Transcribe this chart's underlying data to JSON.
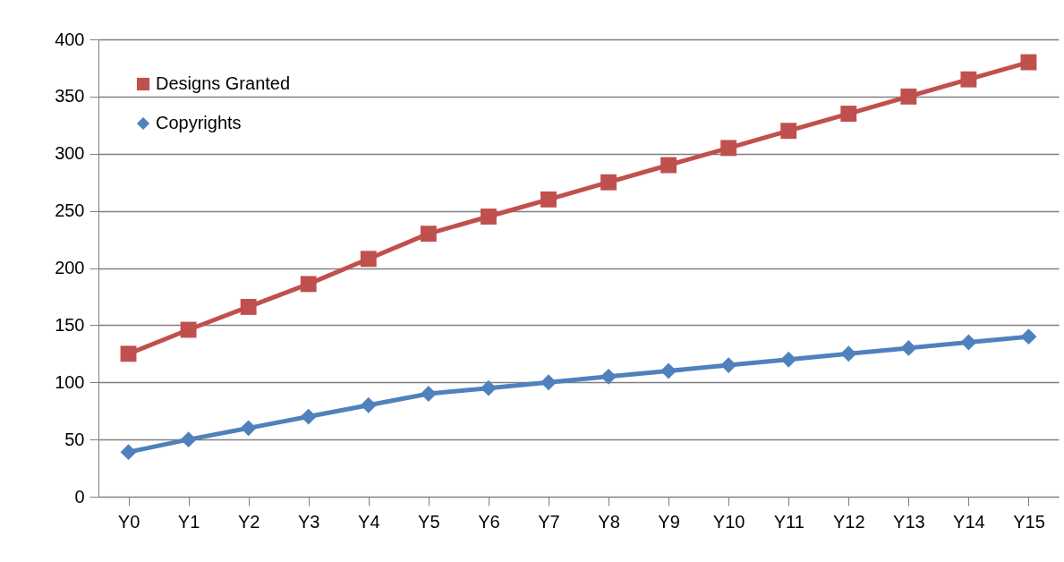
{
  "chart_data": {
    "type": "line",
    "categories": [
      "Y0",
      "Y1",
      "Y2",
      "Y3",
      "Y4",
      "Y5",
      "Y6",
      "Y7",
      "Y8",
      "Y9",
      "Y10",
      "Y11",
      "Y12",
      "Y13",
      "Y14",
      "Y15"
    ],
    "series": [
      {
        "name": "Designs Granted",
        "color": "#c0504d",
        "marker": "square",
        "values": [
          125,
          146,
          166,
          186,
          208,
          230,
          245,
          260,
          275,
          290,
          305,
          320,
          335,
          350,
          365,
          380
        ]
      },
      {
        "name": "Copyrights",
        "color": "#4f81bd",
        "marker": "diamond",
        "values": [
          39,
          50,
          60,
          70,
          80,
          90,
          95,
          100,
          105,
          110,
          115,
          120,
          125,
          130,
          135,
          140
        ]
      }
    ],
    "ylim": [
      0,
      400
    ],
    "yticks": [
      0,
      50,
      100,
      150,
      200,
      250,
      300,
      350,
      400
    ],
    "grid": "y",
    "legend": "top left",
    "line_style": "solid"
  }
}
